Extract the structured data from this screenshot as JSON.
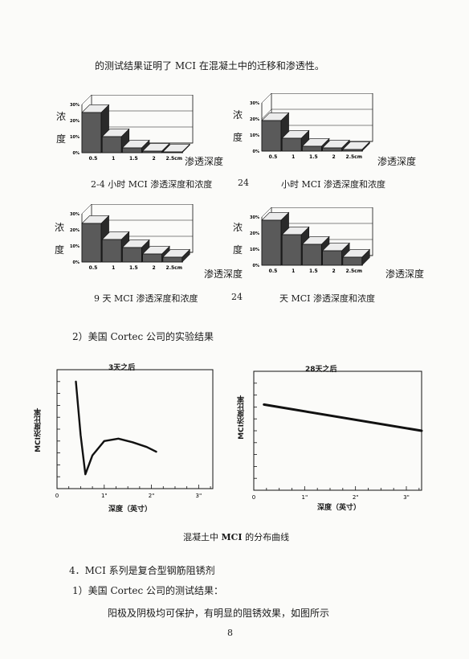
{
  "intro_line": "的测试结果证明了 MCI 在混凝土中的迁移和渗透性。",
  "small_charts": [
    {
      "ylabel_chars": [
        "浓",
        "度"
      ],
      "xlabel": "渗透深度",
      "caption": "2-4 小时 MCI 渗透深度和浓度",
      "yticks": [
        "30%",
        "20%",
        "10%",
        "0%"
      ],
      "xticks": [
        "0.5",
        "1",
        "1.5",
        "2",
        "2.5cm"
      ]
    },
    {
      "ylabel_chars": [
        "浓",
        "度"
      ],
      "xlabel": "渗透深度",
      "caption_prefix": "24",
      "caption": "小时 MCI 渗透深度和浓度",
      "yticks": [
        "30%",
        "20%",
        "10%",
        "0%"
      ],
      "xticks": [
        "0.5",
        "1",
        "1.5",
        "2",
        "2.5cm"
      ]
    },
    {
      "ylabel_chars": [
        "浓",
        "度"
      ],
      "xlabel": "渗透深度",
      "caption": "9 天 MCI 渗透深度和浓度",
      "yticks": [
        "30%",
        "20%",
        "10%",
        "0%"
      ],
      "xticks": [
        "0.5",
        "1",
        "1.5",
        "2",
        "2.5cm"
      ]
    },
    {
      "ylabel_chars": [
        "浓",
        "度"
      ],
      "xlabel": "渗透深度",
      "caption_prefix": "24",
      "caption": "天 MCI 渗透深度和浓度",
      "yticks": [
        "30%",
        "20%",
        "10%",
        "0%"
      ],
      "xticks": [
        "0.5",
        "1",
        "1.5",
        "2",
        "2.5cm"
      ]
    }
  ],
  "section2_heading": "2）美国 Cortec 公司的实验结果",
  "curve_charts": [
    {
      "title": "3天之后",
      "ylabel": "MCI浓度比率",
      "xlabel": "深度（英寸）",
      "xticks": [
        "0",
        "1\"",
        "2\"",
        "3\""
      ]
    },
    {
      "title": "28天之后",
      "ylabel": "MCI浓度比率",
      "xlabel": "深度（英寸）",
      "xticks": [
        "0",
        "1\"",
        "2\"",
        "3\""
      ]
    }
  ],
  "figure_caption": {
    "prefix": "混凝土中 ",
    "bold": "MCI",
    "suffix": " 的分布曲线"
  },
  "section4_heading": "4．MCI 系列是复合型钢筋阻锈剂",
  "section4_sub": "1）美国 Cortec 公司的测试结果：",
  "section4_body": "阳极及阴极均可保护，有明显的阻锈效果，如图所示",
  "page_number": "8",
  "chart_data": [
    {
      "type": "bar",
      "categories": [
        "0.5",
        "1",
        "1.5",
        "2",
        "2.5cm"
      ],
      "values": [
        25,
        10,
        3,
        1,
        0.5
      ],
      "ylim": [
        0,
        30
      ]
    },
    {
      "type": "bar",
      "categories": [
        "0.5",
        "1",
        "1.5",
        "2",
        "2.5cm"
      ],
      "values": [
        19,
        8,
        3,
        2,
        1
      ],
      "ylim": [
        0,
        30
      ]
    },
    {
      "type": "bar",
      "categories": [
        "0.5",
        "1",
        "1.5",
        "2",
        "2.5cm"
      ],
      "values": [
        24,
        14,
        9,
        5,
        3
      ],
      "ylim": [
        0,
        30
      ]
    },
    {
      "type": "bar",
      "categories": [
        "0.5",
        "1",
        "1.5",
        "2",
        "2.5cm"
      ],
      "values": [
        28,
        19,
        13,
        9,
        5
      ],
      "ylim": [
        0,
        30
      ]
    },
    {
      "type": "line",
      "x": [
        0.4,
        0.5,
        0.6,
        0.75,
        1.0,
        1.3,
        1.6,
        1.9,
        2.1
      ],
      "y": [
        0.9,
        0.45,
        0.12,
        0.28,
        0.4,
        0.42,
        0.39,
        0.35,
        0.31
      ],
      "xlim": [
        0,
        3.3
      ]
    },
    {
      "type": "line",
      "x": [
        0.2,
        3.3
      ],
      "y": [
        0.72,
        0.5
      ],
      "xlim": [
        0,
        3.3
      ]
    }
  ]
}
